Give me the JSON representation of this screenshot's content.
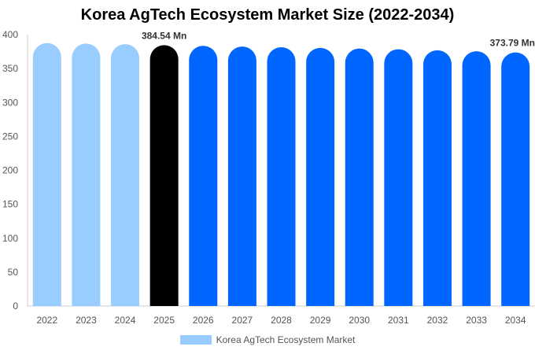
{
  "chart_data": {
    "type": "bar",
    "title": "Korea AgTech Ecosystem Market Size (2022-2034)",
    "categories": [
      "2022",
      "2023",
      "2024",
      "2025",
      "2026",
      "2027",
      "2028",
      "2029",
      "2030",
      "2031",
      "2032",
      "2033",
      "2034"
    ],
    "series": [
      {
        "name": "Korea AgTech Ecosystem Market",
        "values": [
          387.5,
          386.8,
          386.0,
          384.54,
          383.5,
          382.5,
          381.5,
          380.5,
          379.5,
          378.5,
          377.0,
          375.5,
          373.79
        ]
      }
    ],
    "data_labels": {
      "2025": "384.54 Mn",
      "2034": "373.79 Mn"
    },
    "ylim": [
      0,
      400
    ],
    "yticks": [
      0,
      50,
      100,
      150,
      200,
      250,
      300,
      350,
      400
    ],
    "grid": false,
    "legend_position": "bottom",
    "colors": {
      "historical": "#99ccff",
      "current": "#000000",
      "forecast": "#0066ff",
      "axis": "#cccccc",
      "tick_text": "#555555",
      "label_text": "#333333"
    },
    "bar_color_groups": [
      "historical",
      "historical",
      "historical",
      "current",
      "forecast",
      "forecast",
      "forecast",
      "forecast",
      "forecast",
      "forecast",
      "forecast",
      "forecast",
      "forecast"
    ]
  }
}
